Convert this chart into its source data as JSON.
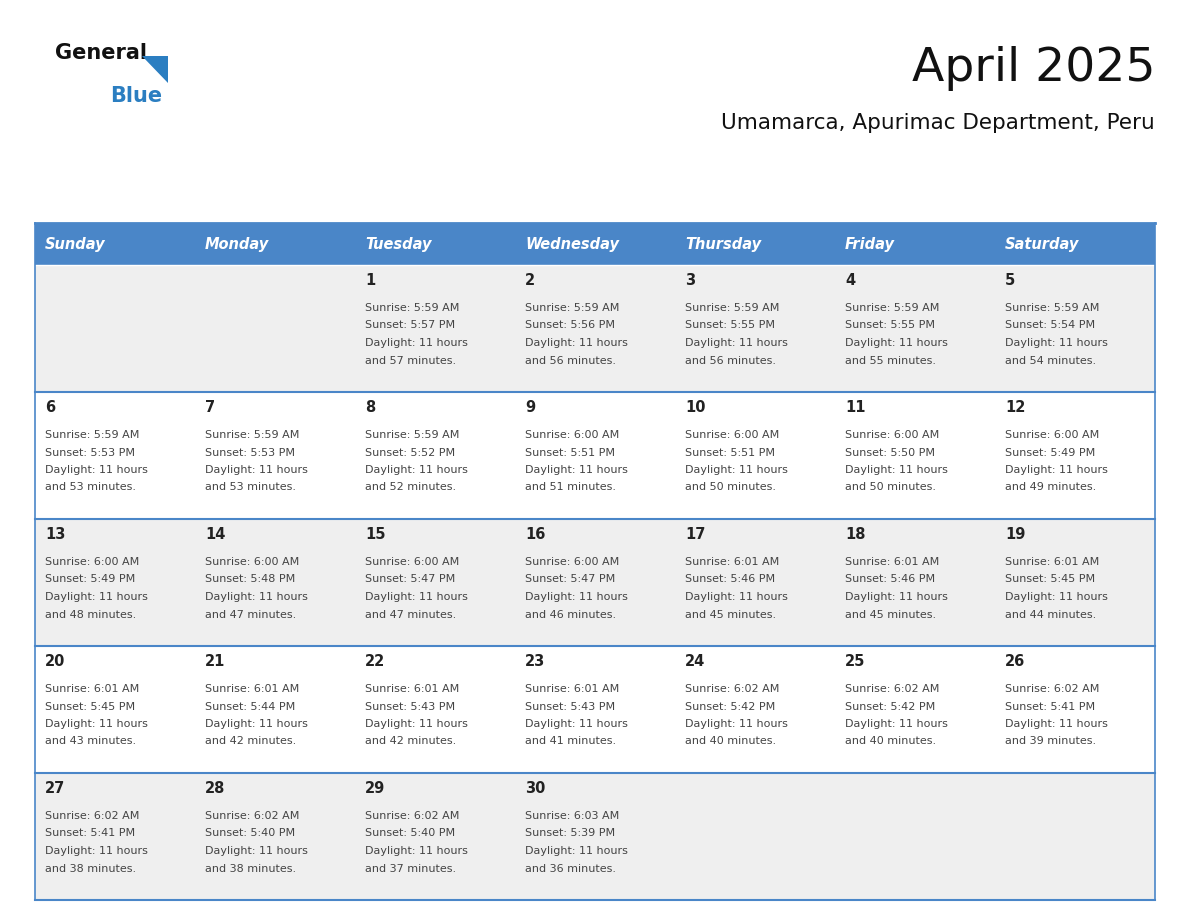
{
  "title": "April 2025",
  "subtitle": "Umamarca, Apurimac Department, Peru",
  "header_bg_color": "#4A86C8",
  "header_text_color": "#FFFFFF",
  "weekdays": [
    "Sunday",
    "Monday",
    "Tuesday",
    "Wednesday",
    "Thursday",
    "Friday",
    "Saturday"
  ],
  "row_bg_even": "#EFEFEF",
  "row_bg_odd": "#FFFFFF",
  "cell_border_color": "#4A86C8",
  "day_text_color": "#222222",
  "info_text_color": "#444444",
  "title_color": "#111111",
  "subtitle_color": "#111111",
  "logo_general_color": "#111111",
  "logo_blue_color": "#2B7EC1",
  "days": [
    {
      "date": 1,
      "col": 2,
      "row": 0,
      "sunrise": "5:59 AM",
      "sunset": "5:57 PM",
      "daylight_a": "11 hours",
      "daylight_b": "and 57 minutes."
    },
    {
      "date": 2,
      "col": 3,
      "row": 0,
      "sunrise": "5:59 AM",
      "sunset": "5:56 PM",
      "daylight_a": "11 hours",
      "daylight_b": "and 56 minutes."
    },
    {
      "date": 3,
      "col": 4,
      "row": 0,
      "sunrise": "5:59 AM",
      "sunset": "5:55 PM",
      "daylight_a": "11 hours",
      "daylight_b": "and 56 minutes."
    },
    {
      "date": 4,
      "col": 5,
      "row": 0,
      "sunrise": "5:59 AM",
      "sunset": "5:55 PM",
      "daylight_a": "11 hours",
      "daylight_b": "and 55 minutes."
    },
    {
      "date": 5,
      "col": 6,
      "row": 0,
      "sunrise": "5:59 AM",
      "sunset": "5:54 PM",
      "daylight_a": "11 hours",
      "daylight_b": "and 54 minutes."
    },
    {
      "date": 6,
      "col": 0,
      "row": 1,
      "sunrise": "5:59 AM",
      "sunset": "5:53 PM",
      "daylight_a": "11 hours",
      "daylight_b": "and 53 minutes."
    },
    {
      "date": 7,
      "col": 1,
      "row": 1,
      "sunrise": "5:59 AM",
      "sunset": "5:53 PM",
      "daylight_a": "11 hours",
      "daylight_b": "and 53 minutes."
    },
    {
      "date": 8,
      "col": 2,
      "row": 1,
      "sunrise": "5:59 AM",
      "sunset": "5:52 PM",
      "daylight_a": "11 hours",
      "daylight_b": "and 52 minutes."
    },
    {
      "date": 9,
      "col": 3,
      "row": 1,
      "sunrise": "6:00 AM",
      "sunset": "5:51 PM",
      "daylight_a": "11 hours",
      "daylight_b": "and 51 minutes."
    },
    {
      "date": 10,
      "col": 4,
      "row": 1,
      "sunrise": "6:00 AM",
      "sunset": "5:51 PM",
      "daylight_a": "11 hours",
      "daylight_b": "and 50 minutes."
    },
    {
      "date": 11,
      "col": 5,
      "row": 1,
      "sunrise": "6:00 AM",
      "sunset": "5:50 PM",
      "daylight_a": "11 hours",
      "daylight_b": "and 50 minutes."
    },
    {
      "date": 12,
      "col": 6,
      "row": 1,
      "sunrise": "6:00 AM",
      "sunset": "5:49 PM",
      "daylight_a": "11 hours",
      "daylight_b": "and 49 minutes."
    },
    {
      "date": 13,
      "col": 0,
      "row": 2,
      "sunrise": "6:00 AM",
      "sunset": "5:49 PM",
      "daylight_a": "11 hours",
      "daylight_b": "and 48 minutes."
    },
    {
      "date": 14,
      "col": 1,
      "row": 2,
      "sunrise": "6:00 AM",
      "sunset": "5:48 PM",
      "daylight_a": "11 hours",
      "daylight_b": "and 47 minutes."
    },
    {
      "date": 15,
      "col": 2,
      "row": 2,
      "sunrise": "6:00 AM",
      "sunset": "5:47 PM",
      "daylight_a": "11 hours",
      "daylight_b": "and 47 minutes."
    },
    {
      "date": 16,
      "col": 3,
      "row": 2,
      "sunrise": "6:00 AM",
      "sunset": "5:47 PM",
      "daylight_a": "11 hours",
      "daylight_b": "and 46 minutes."
    },
    {
      "date": 17,
      "col": 4,
      "row": 2,
      "sunrise": "6:01 AM",
      "sunset": "5:46 PM",
      "daylight_a": "11 hours",
      "daylight_b": "and 45 minutes."
    },
    {
      "date": 18,
      "col": 5,
      "row": 2,
      "sunrise": "6:01 AM",
      "sunset": "5:46 PM",
      "daylight_a": "11 hours",
      "daylight_b": "and 45 minutes."
    },
    {
      "date": 19,
      "col": 6,
      "row": 2,
      "sunrise": "6:01 AM",
      "sunset": "5:45 PM",
      "daylight_a": "11 hours",
      "daylight_b": "and 44 minutes."
    },
    {
      "date": 20,
      "col": 0,
      "row": 3,
      "sunrise": "6:01 AM",
      "sunset": "5:45 PM",
      "daylight_a": "11 hours",
      "daylight_b": "and 43 minutes."
    },
    {
      "date": 21,
      "col": 1,
      "row": 3,
      "sunrise": "6:01 AM",
      "sunset": "5:44 PM",
      "daylight_a": "11 hours",
      "daylight_b": "and 42 minutes."
    },
    {
      "date": 22,
      "col": 2,
      "row": 3,
      "sunrise": "6:01 AM",
      "sunset": "5:43 PM",
      "daylight_a": "11 hours",
      "daylight_b": "and 42 minutes."
    },
    {
      "date": 23,
      "col": 3,
      "row": 3,
      "sunrise": "6:01 AM",
      "sunset": "5:43 PM",
      "daylight_a": "11 hours",
      "daylight_b": "and 41 minutes."
    },
    {
      "date": 24,
      "col": 4,
      "row": 3,
      "sunrise": "6:02 AM",
      "sunset": "5:42 PM",
      "daylight_a": "11 hours",
      "daylight_b": "and 40 minutes."
    },
    {
      "date": 25,
      "col": 5,
      "row": 3,
      "sunrise": "6:02 AM",
      "sunset": "5:42 PM",
      "daylight_a": "11 hours",
      "daylight_b": "and 40 minutes."
    },
    {
      "date": 26,
      "col": 6,
      "row": 3,
      "sunrise": "6:02 AM",
      "sunset": "5:41 PM",
      "daylight_a": "11 hours",
      "daylight_b": "and 39 minutes."
    },
    {
      "date": 27,
      "col": 0,
      "row": 4,
      "sunrise": "6:02 AM",
      "sunset": "5:41 PM",
      "daylight_a": "11 hours",
      "daylight_b": "and 38 minutes."
    },
    {
      "date": 28,
      "col": 1,
      "row": 4,
      "sunrise": "6:02 AM",
      "sunset": "5:40 PM",
      "daylight_a": "11 hours",
      "daylight_b": "and 38 minutes."
    },
    {
      "date": 29,
      "col": 2,
      "row": 4,
      "sunrise": "6:02 AM",
      "sunset": "5:40 PM",
      "daylight_a": "11 hours",
      "daylight_b": "and 37 minutes."
    },
    {
      "date": 30,
      "col": 3,
      "row": 4,
      "sunrise": "6:03 AM",
      "sunset": "5:39 PM",
      "daylight_a": "11 hours",
      "daylight_b": "and 36 minutes."
    }
  ]
}
